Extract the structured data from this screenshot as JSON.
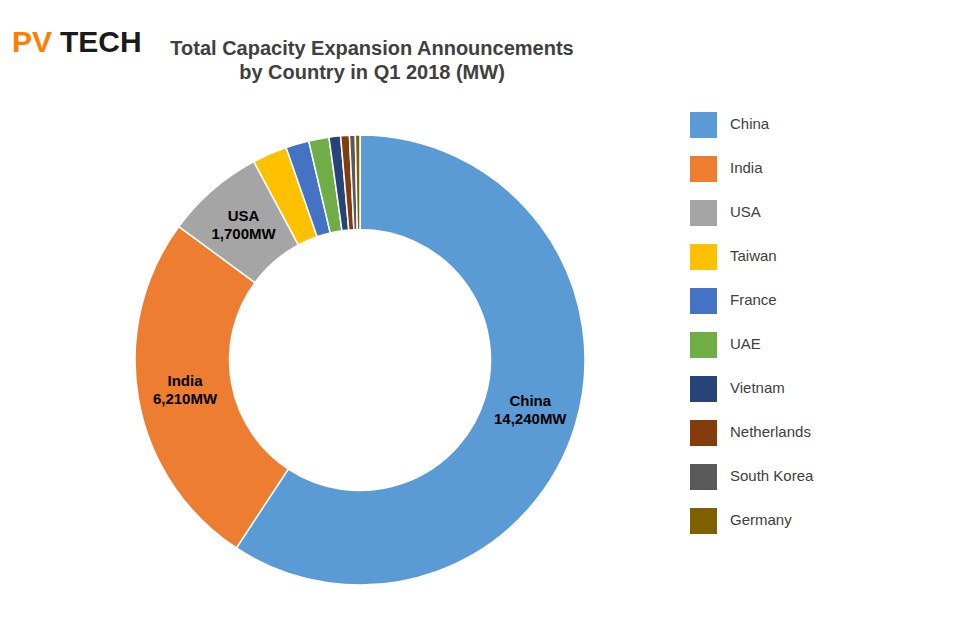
{
  "chart_data": {
    "type": "donut",
    "title": "Total Capacity Expansion Announcements\nby Country in Q1 2018 (MW)",
    "categories": [
      "China",
      "India",
      "USA",
      "Taiwan",
      "France",
      "UAE",
      "Vietnam",
      "Netherlands",
      "South Korea",
      "Germany"
    ],
    "values": [
      14240,
      6210,
      1700,
      600,
      400,
      350,
      200,
      150,
      100,
      80
    ],
    "colors": [
      "#5B9BD5",
      "#ED7D31",
      "#A5A5A5",
      "#FFC000",
      "#4472C4",
      "#70AD47",
      "#264478",
      "#843C0C",
      "#595959",
      "#7F6000"
    ],
    "legend": "right",
    "annotations": [
      {
        "text": "China\n14,240MW",
        "category": "China",
        "color": "#000000"
      },
      {
        "text": "India\n6,210MW",
        "category": "India",
        "color": "#000000"
      },
      {
        "text": "USA\n1,700MW",
        "category": "USA",
        "color": "#000000"
      },
      {
        "text": "PV",
        "color": "#FF8000"
      },
      {
        "text": "TECH",
        "color": "#1a1a1a"
      }
    ]
  }
}
